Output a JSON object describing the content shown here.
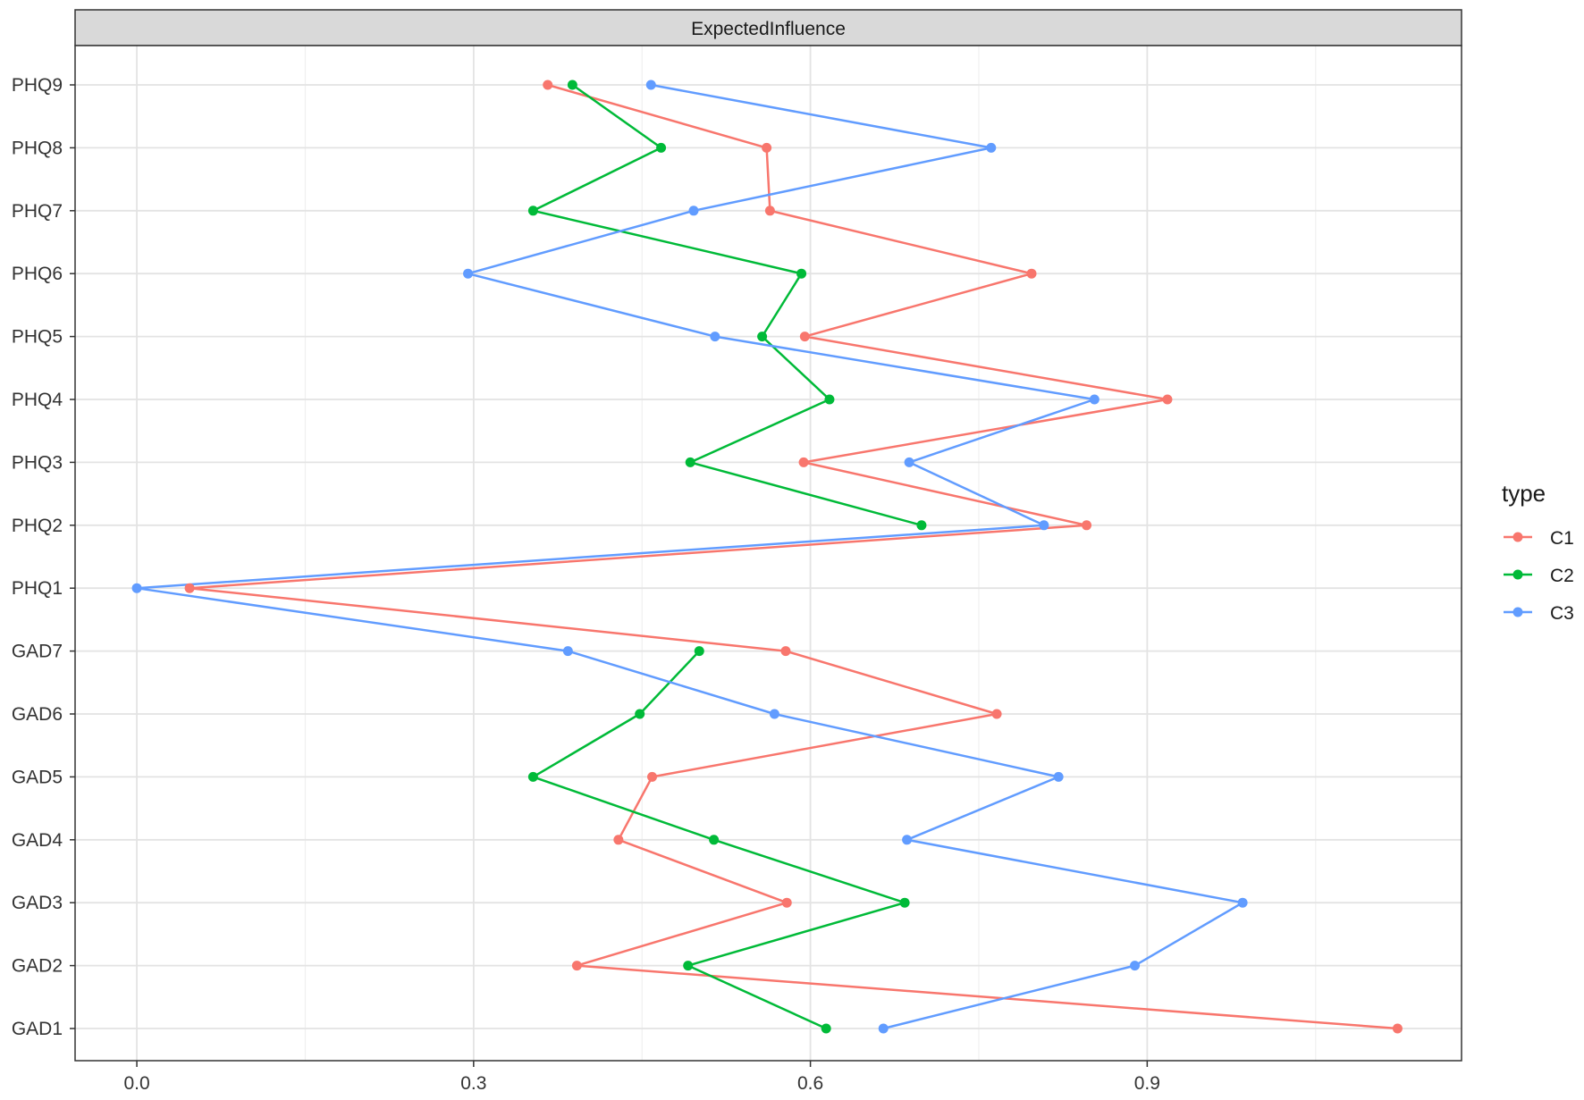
{
  "chart_data": {
    "type": "line",
    "facet_title": "ExpectedInfluence",
    "categories": [
      "PHQ9",
      "PHQ8",
      "PHQ7",
      "PHQ6",
      "PHQ5",
      "PHQ4",
      "PHQ3",
      "PHQ2",
      "PHQ1",
      "GAD7",
      "GAD6",
      "GAD5",
      "GAD4",
      "GAD3",
      "GAD2",
      "GAD1"
    ],
    "xlim": [
      -0.055,
      1.18
    ],
    "x_ticks": [
      0.0,
      0.3,
      0.6,
      0.9
    ],
    "x_tick_labels": [
      "0.0",
      "0.3",
      "0.6",
      "0.9"
    ],
    "x_minor_ticks": [
      0.15,
      0.45,
      0.75,
      1.05
    ],
    "grid": true,
    "legend": {
      "title": "type",
      "position": "right"
    },
    "series": [
      {
        "name": "C1",
        "color": "#F8766D",
        "values": [
          0.366,
          0.561,
          0.564,
          0.797,
          0.595,
          0.918,
          0.594,
          0.846,
          0.047,
          0.578,
          0.766,
          0.459,
          0.429,
          0.579,
          0.392,
          1.123
        ]
      },
      {
        "name": "C2",
        "color": "#00BA38",
        "values": [
          0.388,
          0.467,
          0.353,
          0.592,
          0.557,
          0.617,
          0.493,
          0.699,
          null,
          0.501,
          0.448,
          0.353,
          0.514,
          0.684,
          0.491,
          0.614
        ]
      },
      {
        "name": "C3",
        "color": "#619CFF",
        "values": [
          0.458,
          0.761,
          0.496,
          0.295,
          0.515,
          0.853,
          0.688,
          0.808,
          0.0,
          0.384,
          0.568,
          0.821,
          0.686,
          0.985,
          0.889,
          0.665
        ]
      }
    ]
  }
}
